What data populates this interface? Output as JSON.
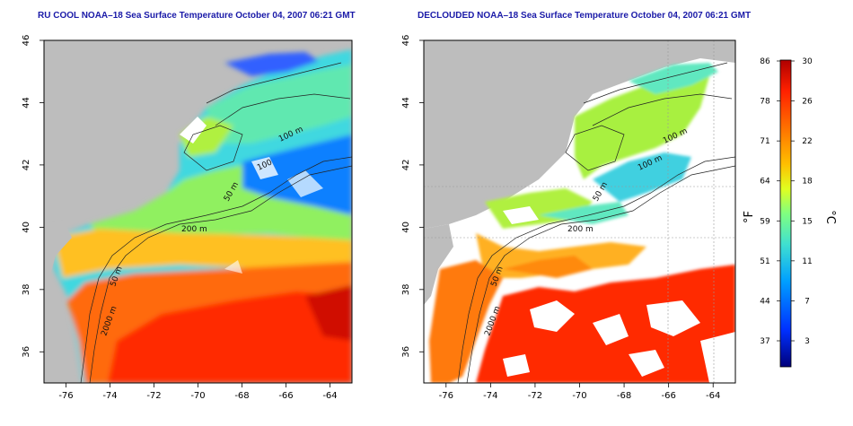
{
  "panels": [
    {
      "id": "left",
      "title": "RU COOL NOAA–18 Sea Surface Temperature October 04, 2007 06:21 GMT",
      "contours": [
        "100 m",
        "100",
        "50 m",
        "200 m",
        "50 m",
        "2000 m"
      ]
    },
    {
      "id": "right",
      "title": "DECLOUDED NOAA–18 Sea Surface Temperature October 04, 2007 06:21 GMT",
      "contours": [
        "100 m",
        "100 m",
        "50 m",
        "200 m",
        "50 m",
        "2000 m"
      ]
    }
  ],
  "axes": {
    "x_ticks": [
      "-76",
      "-74",
      "-72",
      "-70",
      "-68",
      "-66",
      "-64"
    ],
    "y_ticks": [
      "36",
      "38",
      "40",
      "42",
      "44",
      "46"
    ]
  },
  "colorbar": {
    "fahrenheit_ticks": [
      "86",
      "78",
      "71",
      "64",
      "59",
      "51",
      "44",
      "37"
    ],
    "celsius_ticks": [
      "30",
      "26",
      "22",
      "18",
      "15",
      "11",
      "7",
      "3"
    ],
    "fahrenheit_label": "°F",
    "celsius_label": "°C"
  },
  "colors": {
    "land": "#bdbdbd",
    "cloud_white": "#ffffff",
    "title_blue": "#1a1aa8",
    "scale": [
      "#00007a",
      "#0030ff",
      "#00a0ff",
      "#40e0d0",
      "#80ff80",
      "#e0ff20",
      "#ffc000",
      "#ff7000",
      "#ff2000",
      "#b00000"
    ]
  }
}
